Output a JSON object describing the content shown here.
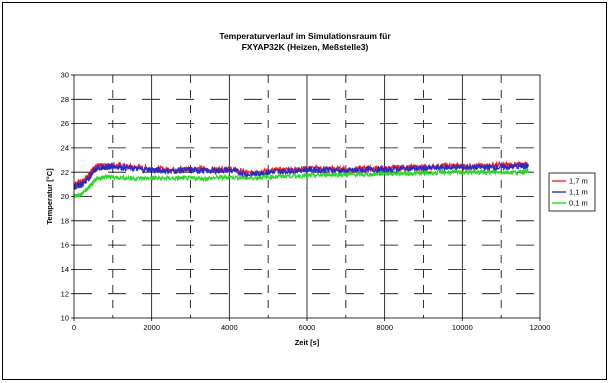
{
  "chart_data": {
    "type": "line",
    "title_line1": "Temperaturverlauf im Simulationsraum für",
    "title_line2": "FXYAP32K (Heizen, Meßstelle3)",
    "xlabel": "Zeit [s]",
    "ylabel": "Temperatur [°C]",
    "xlim": [
      0,
      12000
    ],
    "ylim": [
      10,
      30
    ],
    "x_ticks": [
      0,
      2000,
      4000,
      6000,
      8000,
      10000,
      12000
    ],
    "y_ticks": [
      10,
      12,
      14,
      16,
      18,
      20,
      22,
      24,
      26,
      28,
      30
    ],
    "x_tick_labels": [
      "0",
      "2000",
      "4000",
      "6000",
      "8000",
      "10000",
      "12000"
    ],
    "y_tick_labels": [
      "10",
      "12",
      "14",
      "16",
      "18",
      "20",
      "22",
      "24",
      "26",
      "28",
      "30"
    ],
    "grid": "dashed",
    "legend_position": "right",
    "series": [
      {
        "name": "1,7 m",
        "color": "#e8262a",
        "x": [
          0,
          200,
          400,
          500,
          600,
          800,
          1000,
          1500,
          2000,
          2500,
          3000,
          3500,
          4000,
          4500,
          5000,
          5500,
          6000,
          6500,
          7000,
          7500,
          8000,
          8500,
          9000,
          9500,
          10000,
          10500,
          11000,
          11500,
          11700
        ],
        "values": [
          21.0,
          21.2,
          21.8,
          22.3,
          22.5,
          22.5,
          22.6,
          22.4,
          22.3,
          22.2,
          22.3,
          22.2,
          22.3,
          21.9,
          22.1,
          22.2,
          22.3,
          22.3,
          22.2,
          22.3,
          22.3,
          22.4,
          22.4,
          22.5,
          22.5,
          22.5,
          22.6,
          22.6,
          22.6
        ]
      },
      {
        "name": "1,1 m",
        "color": "#2a2ac8",
        "x": [
          0,
          200,
          400,
          500,
          600,
          800,
          1000,
          1500,
          2000,
          2500,
          3000,
          3500,
          4000,
          4500,
          5000,
          5500,
          6000,
          6500,
          7000,
          7500,
          8000,
          8500,
          9000,
          9500,
          10000,
          10500,
          11000,
          11500,
          11700
        ],
        "values": [
          20.8,
          21.0,
          21.6,
          22.1,
          22.3,
          22.4,
          22.5,
          22.3,
          22.2,
          22.1,
          22.2,
          22.1,
          22.2,
          21.8,
          22.0,
          22.1,
          22.2,
          22.2,
          22.1,
          22.2,
          22.2,
          22.3,
          22.3,
          22.4,
          22.4,
          22.4,
          22.4,
          22.5,
          22.5
        ]
      },
      {
        "name": "0,1 m",
        "color": "#2ad82a",
        "x": [
          0,
          200,
          400,
          500,
          600,
          800,
          1000,
          1500,
          2000,
          2500,
          3000,
          3500,
          4000,
          4500,
          5000,
          5500,
          6000,
          6500,
          7000,
          7500,
          8000,
          8500,
          9000,
          9500,
          10000,
          10500,
          11000,
          11500,
          11700
        ],
        "values": [
          20.0,
          20.2,
          20.8,
          21.2,
          21.5,
          21.6,
          21.6,
          21.5,
          21.5,
          21.5,
          21.5,
          21.5,
          21.6,
          21.5,
          21.6,
          21.7,
          21.7,
          21.8,
          21.8,
          21.8,
          21.9,
          21.9,
          21.9,
          22.0,
          22.0,
          22.0,
          22.0,
          22.0,
          22.1
        ]
      }
    ]
  }
}
